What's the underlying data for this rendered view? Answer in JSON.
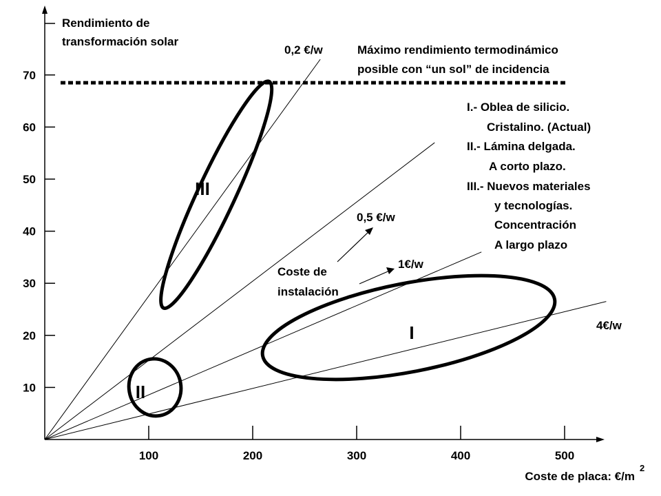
{
  "chart_data": {
    "type": "scatter",
    "ylabel_lines": [
      "Rendimiento de",
      "transformación solar"
    ],
    "xlabel": "Coste de placa: €/m",
    "xlabel_sup": "2",
    "x_ticks": [
      100,
      200,
      300,
      400,
      500
    ],
    "y_ticks": [
      10,
      20,
      30,
      40,
      50,
      60,
      70
    ],
    "xlim": [
      0,
      540
    ],
    "ylim": [
      0,
      80
    ],
    "grid": false,
    "max_efficiency": {
      "value": 68.5,
      "label_lines": [
        "Máximo rendimiento termodinámico",
        "posible con “un sol” de incidencia"
      ]
    },
    "cost_lines": [
      {
        "label": "0,2 €/w",
        "x_end": 265,
        "y_end": 73
      },
      {
        "label": "0,5 €/w",
        "x_end": 375,
        "y_end": 57
      },
      {
        "label": "1€/w",
        "x_end": 420,
        "y_end": 36
      },
      {
        "label": "4€/w",
        "x_end": 540,
        "y_end": 26.5
      }
    ],
    "regions": [
      {
        "label": "I",
        "x_center": 350,
        "y_center": 21.5,
        "x_radius": 143,
        "y_radius": 8.5,
        "angle_deg": -11
      },
      {
        "label": "II",
        "x_center": 106,
        "y_center": 10,
        "x_radius": 25,
        "y_radius": 5.5,
        "angle_deg": -10
      },
      {
        "label": "III",
        "x_center": 165,
        "y_center": 47,
        "x_radius": 18,
        "y_radius": 24,
        "angle_deg": 25
      }
    ],
    "legend_lines": [
      "I.- Oblea de silicio.",
      "Cristalino. (Actual)",
      "II.- Lámina delgada.",
      "A corto plazo.",
      "III.- Nuevos materiales",
      "y tecnologías.",
      "Concentración",
      "A largo plazo"
    ],
    "annotation_lines": [
      "Coste de",
      "instalación"
    ]
  }
}
